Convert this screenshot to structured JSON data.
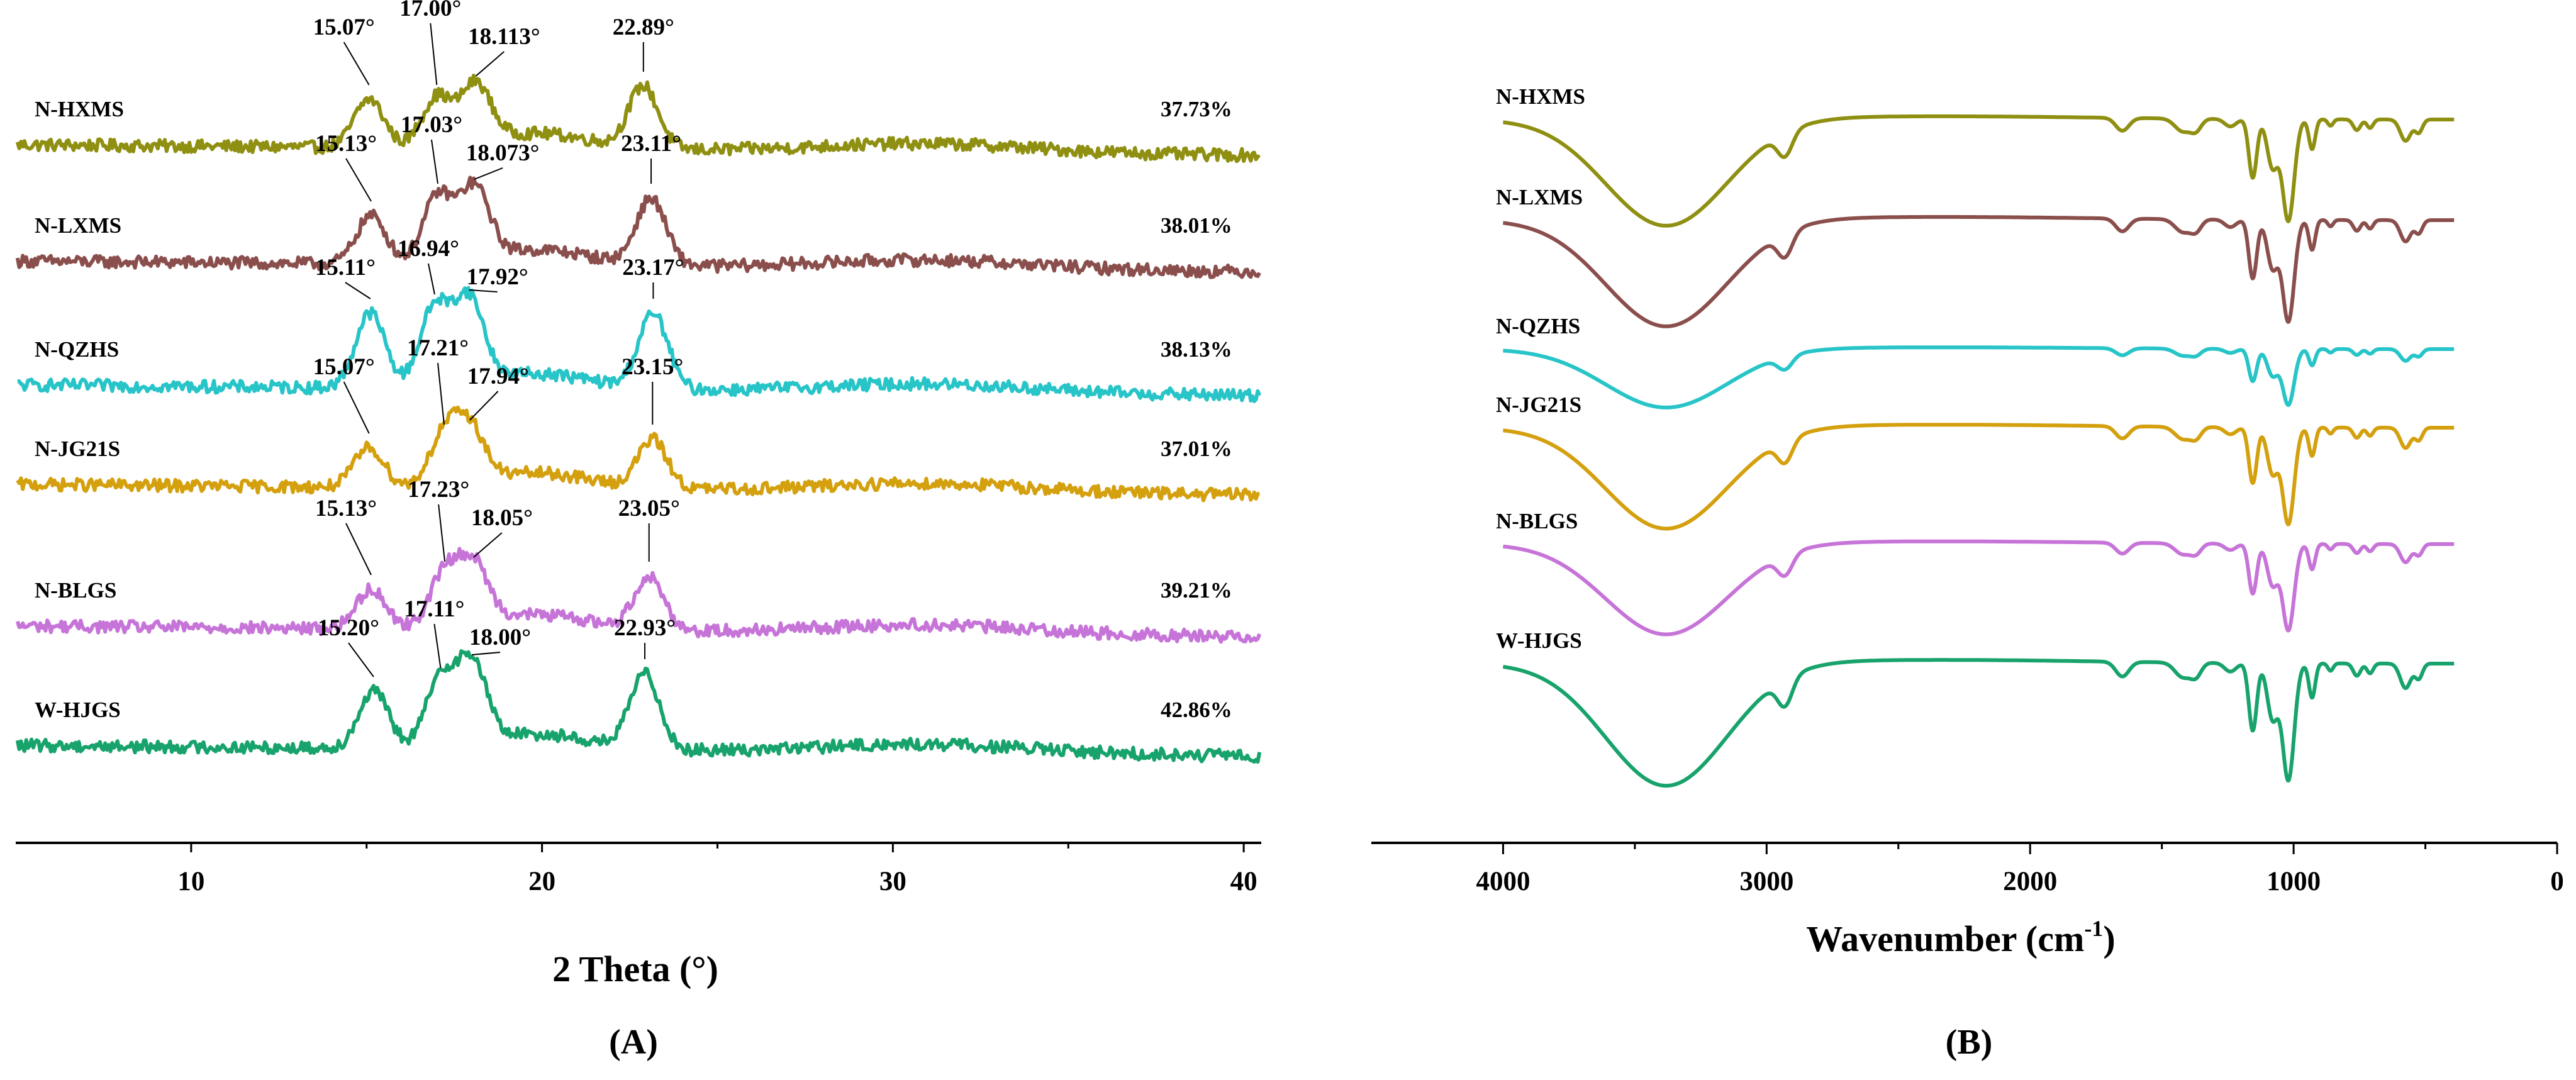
{
  "chart_data": [
    {
      "panel": "(A)",
      "panel_letter": "A",
      "type": "line",
      "title": "",
      "xlabel": "2 Theta (°)",
      "ylabel": "",
      "xlim": [
        5,
        40.5
      ],
      "xticks": [
        "10",
        "20",
        "30",
        "40"
      ],
      "grid": false,
      "series": [
        {
          "name": "N-HXMS",
          "color": "#8f8f12",
          "crystallinity": "37.73%",
          "baseline": 0,
          "peaks": [
            {
              "x": 15.07,
              "label": "15.07°",
              "h": 0.55
            },
            {
              "x": 17.0,
              "label": "17.00°",
              "h": 0.55
            },
            {
              "x": 18.113,
              "label": "18.113°",
              "h": 0.65
            },
            {
              "x": 22.89,
              "label": "22.89°",
              "h": 0.7
            }
          ]
        },
        {
          "name": "N-LXMS",
          "color": "#8a4f4c",
          "crystallinity": "38.01%",
          "baseline": 1,
          "peaks": [
            {
              "x": 15.13,
              "label": "15.13°",
              "h": 0.55
            },
            {
              "x": 17.03,
              "label": "17.03°",
              "h": 0.75
            },
            {
              "x": 18.073,
              "label": "18.073°",
              "h": 0.8
            },
            {
              "x": 23.11,
              "label": "23.11°",
              "h": 0.75
            }
          ]
        },
        {
          "name": "N-QZHS",
          "color": "#27c4c8",
          "crystallinity": "38.13%",
          "baseline": 2,
          "peaks": [
            {
              "x": 15.11,
              "label": "15.11°",
              "h": 0.85
            },
            {
              "x": 16.94,
              "label": "16.94°",
              "h": 0.9
            },
            {
              "x": 17.92,
              "label": "17.92°",
              "h": 0.95
            },
            {
              "x": 23.17,
              "label": "23.17°",
              "h": 0.85
            }
          ]
        },
        {
          "name": "N-JG21S",
          "color": "#d4a00e",
          "crystallinity": "37.01%",
          "baseline": 3,
          "peaks": [
            {
              "x": 15.07,
              "label": "15.07°",
              "h": 0.45
            },
            {
              "x": 17.21,
              "label": "17.21°",
              "h": 0.55
            },
            {
              "x": 17.94,
              "label": "17.94°",
              "h": 0.6
            },
            {
              "x": 23.15,
              "label": "23.15°",
              "h": 0.55
            }
          ]
        },
        {
          "name": "N-BLGS",
          "color": "#c774d9",
          "crystallinity": "39.21%",
          "baseline": 4,
          "peaks": [
            {
              "x": 15.13,
              "label": "15.13°",
              "h": 0.45
            },
            {
              "x": 17.23,
              "label": "17.23°",
              "h": 0.6
            },
            {
              "x": 18.05,
              "label": "18.05°",
              "h": 0.65
            },
            {
              "x": 23.05,
              "label": "23.05°",
              "h": 0.6
            }
          ]
        },
        {
          "name": "W-HJGS",
          "color": "#17a36b",
          "crystallinity": "42.86%",
          "baseline": 5,
          "peaks": [
            {
              "x": 15.2,
              "label": "15.20°",
              "h": 0.65
            },
            {
              "x": 17.11,
              "label": "17.11°",
              "h": 0.75
            },
            {
              "x": 18.0,
              "label": "18.00°",
              "h": 0.9
            },
            {
              "x": 22.93,
              "label": "22.93°",
              "h": 0.85
            }
          ]
        }
      ]
    },
    {
      "panel": "(B)",
      "panel_letter": "B",
      "type": "line",
      "title": "",
      "xlabel": "Wavenumber (cm⁻¹)",
      "xlabel_main": "Wavenumber (cm",
      "xlabel_sup": "-1",
      "xlabel_close": ")",
      "ylabel": "",
      "xlim": [
        4500,
        0
      ],
      "xticks": [
        "4000",
        "3000",
        "2000",
        "1000",
        "0"
      ],
      "grid": false,
      "series": [
        {
          "name": "N-HXMS",
          "color": "#8f8f12",
          "depth": 1.0
        },
        {
          "name": "N-LXMS",
          "color": "#8a4f4c",
          "depth": 1.0
        },
        {
          "name": "N-QZHS",
          "color": "#27c4c8",
          "depth": 0.55
        },
        {
          "name": "N-JG21S",
          "color": "#d4a00e",
          "depth": 0.95
        },
        {
          "name": "N-BLGS",
          "color": "#c774d9",
          "depth": 0.85
        },
        {
          "name": "W-HJGS",
          "color": "#17a36b",
          "depth": 1.15
        }
      ]
    }
  ]
}
